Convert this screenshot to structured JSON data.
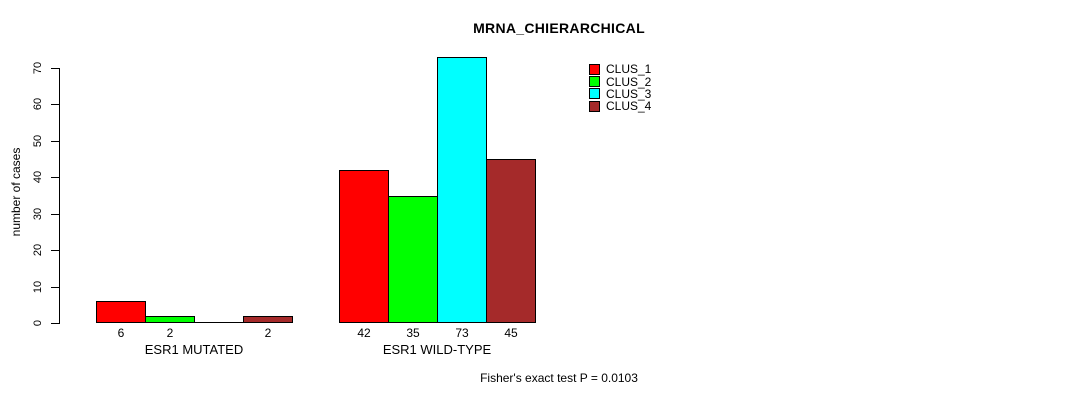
{
  "chart_data": {
    "type": "bar",
    "title": "MRNA_CHIERARCHICAL",
    "ylabel": "number of cases",
    "xlabel": "",
    "ylim": [
      0,
      70
    ],
    "yticks": [
      0,
      10,
      20,
      30,
      40,
      50,
      60,
      70
    ],
    "grid": false,
    "legend_position": "top-right",
    "background": "#FFFFFF",
    "axis_color": "#000000",
    "categories": [
      "ESR1 MUTATED",
      "ESR1 WILD-TYPE"
    ],
    "series": [
      {
        "name": "CLUS_1",
        "color": "#FF0000",
        "values": [
          6,
          42
        ]
      },
      {
        "name": "CLUS_2",
        "color": "#00FF00",
        "values": [
          2,
          35
        ]
      },
      {
        "name": "CLUS_3",
        "color": "#00FFFF",
        "values": [
          0,
          73
        ]
      },
      {
        "name": "CLUS_4",
        "color": "#A52A2A",
        "values": [
          2,
          45
        ]
      }
    ],
    "bar_value_labels": [
      [
        "6",
        "2",
        "",
        "2"
      ],
      [
        "42",
        "35",
        "73",
        "45"
      ]
    ],
    "annotation": "Fisher's exact test P = 0.0103"
  }
}
